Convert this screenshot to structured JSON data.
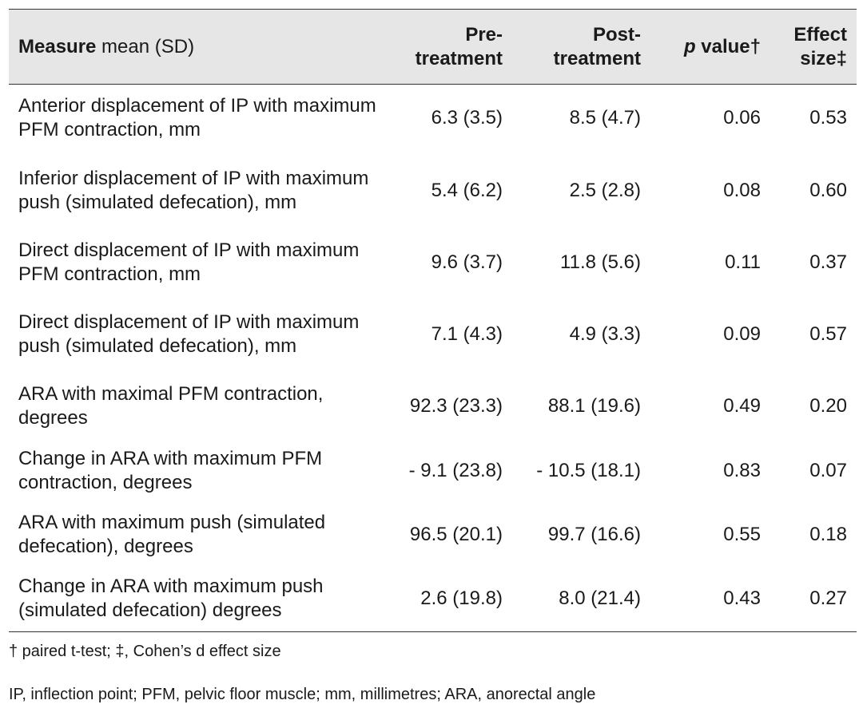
{
  "table": {
    "header": {
      "measure_bold": "Measure",
      "measure_rest": " mean (SD)",
      "pre_line1": "Pre-",
      "pre_line2": "treatment",
      "post_line1": "Post-",
      "post_line2": "treatment",
      "p_italic": "p",
      "p_rest": " value†",
      "effect_line1": "Effect",
      "effect_line2": "size‡"
    },
    "rows": [
      {
        "measure": "Anterior displacement of IP with maximum PFM contraction, mm",
        "pre": "6.3 (3.5)",
        "post": "8.5 (4.7)",
        "p": "0.06",
        "effect": "0.53"
      },
      {
        "measure": "Inferior displacement of IP with maximum push (simulated defecation), mm",
        "pre": "5.4 (6.2)",
        "post": "2.5 (2.8)",
        "p": "0.08",
        "effect": "0.60"
      },
      {
        "measure": "Direct displacement of IP with maximum PFM contraction, mm",
        "pre": "9.6 (3.7)",
        "post": "11.8 (5.6)",
        "p": "0.11",
        "effect": "0.37"
      },
      {
        "measure": "Direct displacement of IP with maximum push (simulated defecation), mm",
        "pre": "7.1 (4.3)",
        "post": "4.9 (3.3)",
        "p": "0.09",
        "effect": "0.57"
      },
      {
        "measure": "ARA with maximal PFM contraction, degrees",
        "pre": "92.3 (23.3)",
        "post": "88.1 (19.6)",
        "p": "0.49",
        "effect": "0.20"
      },
      {
        "measure": "Change in ARA with maximum PFM contraction, degrees",
        "pre": "- 9.1 (23.8)",
        "post": "- 10.5 (18.1)",
        "p": "0.83",
        "effect": "0.07"
      },
      {
        "measure": "ARA with maximum push (simulated defecation), degrees",
        "pre": "96.5 (20.1)",
        "post": "99.7 (16.6)",
        "p": "0.55",
        "effect": "0.18"
      },
      {
        "measure": "Change in ARA with maximum push (simulated defecation) degrees",
        "pre": "2.6 (19.8)",
        "post": "8.0 (21.4)",
        "p": "0.43",
        "effect": "0.27"
      }
    ]
  },
  "footnotes": {
    "line1": "† paired t-test; ‡, Cohen’s d effect size",
    "line2": "IP, inflection point; PFM, pelvic floor muscle; mm, millimetres; ARA, anorectal angle"
  }
}
